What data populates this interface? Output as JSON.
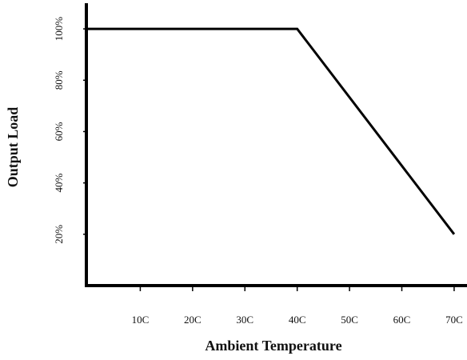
{
  "chart_data": {
    "type": "line",
    "title": "",
    "xlabel": "Ambient Temperature",
    "ylabel": "Output Load",
    "x_ticks": [
      {
        "value": 10,
        "label": "10C"
      },
      {
        "value": 20,
        "label": "20C"
      },
      {
        "value": 30,
        "label": "30C"
      },
      {
        "value": 40,
        "label": "40C"
      },
      {
        "value": 50,
        "label": "50C"
      },
      {
        "value": 60,
        "label": "60C"
      },
      {
        "value": 70,
        "label": "70C"
      }
    ],
    "y_ticks": [
      {
        "value": 20,
        "label": "20%"
      },
      {
        "value": 40,
        "label": "40%"
      },
      {
        "value": 60,
        "label": "60%"
      },
      {
        "value": 80,
        "label": "80%"
      },
      {
        "value": 100,
        "label": "100%"
      }
    ],
    "xlim": [
      0,
      72
    ],
    "ylim": [
      0,
      110
    ],
    "grid": false,
    "series": [
      {
        "color": "#000000",
        "points": [
          {
            "x": 0,
            "y": 100
          },
          {
            "x": 40,
            "y": 100
          },
          {
            "x": 70,
            "y": 20
          }
        ]
      }
    ]
  }
}
